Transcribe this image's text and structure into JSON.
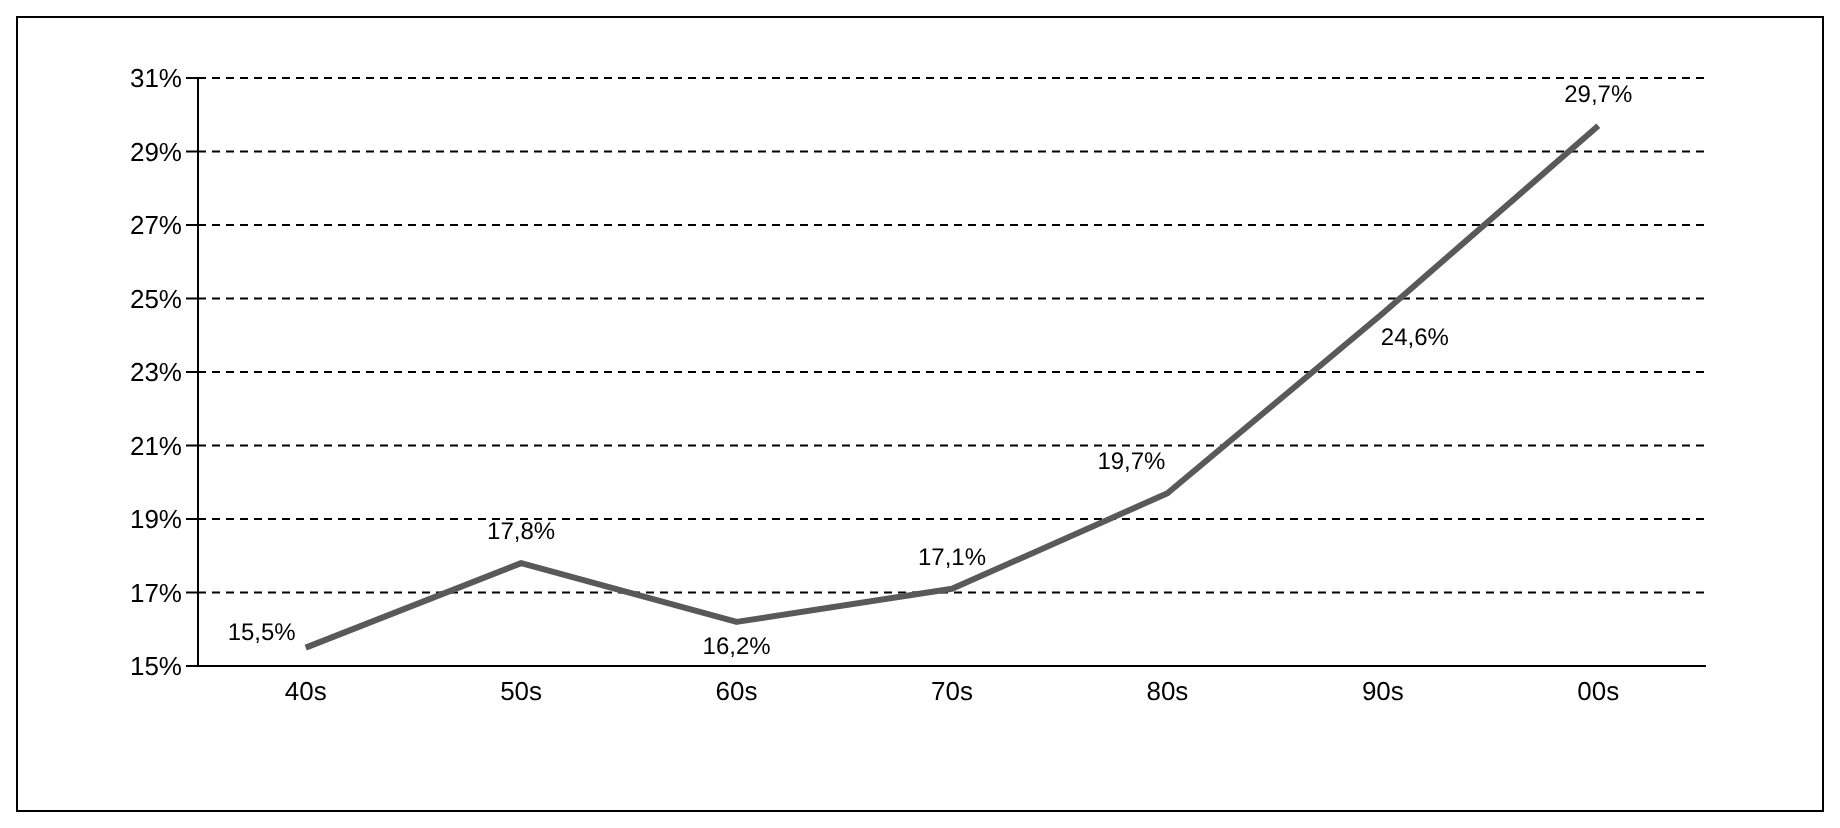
{
  "chart_data": {
    "type": "line",
    "categories": [
      "40s",
      "50s",
      "60s",
      "70s",
      "80s",
      "90s",
      "00s"
    ],
    "series": [
      {
        "color": "#595959",
        "values": [
          15.5,
          17.8,
          16.2,
          17.1,
          19.7,
          24.6,
          29.7
        ],
        "value_labels": [
          "15,5%",
          "17,8%",
          "16,2%",
          "17,1%",
          "19,7%",
          "24,6%",
          "29,7%"
        ]
      }
    ],
    "ylim": [
      15,
      31
    ],
    "yticks": [
      {
        "value": 15,
        "label": "15%"
      },
      {
        "value": 17,
        "label": "17%"
      },
      {
        "value": 19,
        "label": "19%"
      },
      {
        "value": 21,
        "label": "21%"
      },
      {
        "value": 23,
        "label": "23%"
      },
      {
        "value": 25,
        "label": "25%"
      },
      {
        "value": 27,
        "label": "27%"
      },
      {
        "value": 29,
        "label": "29%"
      },
      {
        "value": 31,
        "label": "31%"
      }
    ],
    "grid": "y",
    "legend": false,
    "marker": "none",
    "line_style": "solid"
  }
}
